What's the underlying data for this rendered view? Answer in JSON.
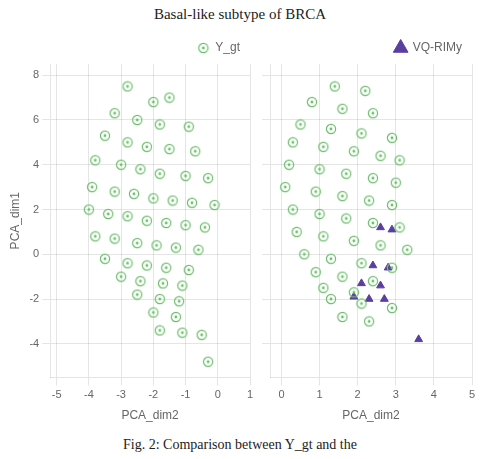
{
  "title": "Basal-like subtype of BRCA",
  "annotations": [
    "Fig. 2: Comparison between Y_gt and the"
  ],
  "chart_data": [
    {
      "type": "scatter",
      "xlabel": "PCA_dim2",
      "ylabel": "PCA_dim1",
      "xlim": [
        -5.2,
        1.0
      ],
      "ylim": [
        -5.5,
        8.5
      ],
      "xticks": [
        -5,
        -4,
        -3,
        -2,
        -1,
        0,
        1
      ],
      "yticks": [
        -4,
        -2,
        0,
        2,
        4,
        6,
        8
      ],
      "grid": true,
      "legend": "upper right",
      "series": [
        {
          "name": "Y_gt",
          "color": "#6abf69",
          "marker": "circle",
          "values": [
            [
              -2.8,
              7.5
            ],
            [
              -1.5,
              7.0
            ],
            [
              -2.0,
              6.8
            ],
            [
              -3.2,
              6.3
            ],
            [
              -2.5,
              6.0
            ],
            [
              -1.8,
              5.8
            ],
            [
              -0.9,
              5.7
            ],
            [
              -3.5,
              5.3
            ],
            [
              -2.8,
              5.0
            ],
            [
              -2.2,
              4.8
            ],
            [
              -1.5,
              4.7
            ],
            [
              -0.7,
              4.6
            ],
            [
              -3.8,
              4.2
            ],
            [
              -3.0,
              4.0
            ],
            [
              -2.4,
              3.8
            ],
            [
              -1.8,
              3.6
            ],
            [
              -1.0,
              3.5
            ],
            [
              -0.3,
              3.4
            ],
            [
              -3.9,
              3.0
            ],
            [
              -3.2,
              2.8
            ],
            [
              -2.6,
              2.7
            ],
            [
              -2.0,
              2.5
            ],
            [
              -1.4,
              2.4
            ],
            [
              -0.8,
              2.3
            ],
            [
              -0.1,
              2.2
            ],
            [
              -4.0,
              2.0
            ],
            [
              -3.4,
              1.8
            ],
            [
              -2.8,
              1.7
            ],
            [
              -2.2,
              1.5
            ],
            [
              -1.6,
              1.4
            ],
            [
              -1.0,
              1.3
            ],
            [
              -0.4,
              1.2
            ],
            [
              -3.8,
              0.8
            ],
            [
              -3.2,
              0.7
            ],
            [
              -2.5,
              0.5
            ],
            [
              -1.9,
              0.4
            ],
            [
              -1.3,
              0.3
            ],
            [
              -0.6,
              0.2
            ],
            [
              -3.5,
              -0.2
            ],
            [
              -2.8,
              -0.4
            ],
            [
              -2.2,
              -0.5
            ],
            [
              -1.6,
              -0.6
            ],
            [
              -0.9,
              -0.7
            ],
            [
              -3.0,
              -1.0
            ],
            [
              -2.4,
              -1.2
            ],
            [
              -1.7,
              -1.3
            ],
            [
              -1.1,
              -1.4
            ],
            [
              -2.5,
              -1.8
            ],
            [
              -1.8,
              -2.0
            ],
            [
              -1.2,
              -2.1
            ],
            [
              -2.0,
              -2.6
            ],
            [
              -1.3,
              -2.8
            ],
            [
              -1.8,
              -3.4
            ],
            [
              -1.1,
              -3.5
            ],
            [
              -0.5,
              -3.6
            ],
            [
              -0.3,
              -4.8
            ]
          ]
        }
      ]
    },
    {
      "type": "scatter",
      "xlabel": "PCA_dim2",
      "xlim": [
        -0.3,
        5.0
      ],
      "ylim": [
        -5.5,
        8.5
      ],
      "xticks": [
        0,
        1,
        2,
        3,
        4,
        5
      ],
      "yticks": [
        -4,
        -2,
        0,
        2,
        4,
        6,
        8
      ],
      "tick_labels": "x",
      "grid": true,
      "legend": "upper right",
      "series": [
        {
          "color": "#6abf69",
          "marker": "circle",
          "values": [
            [
              1.4,
              7.5
            ],
            [
              2.2,
              7.3
            ],
            [
              0.8,
              6.8
            ],
            [
              1.6,
              6.5
            ],
            [
              2.4,
              6.3
            ],
            [
              0.5,
              5.8
            ],
            [
              1.3,
              5.6
            ],
            [
              2.1,
              5.4
            ],
            [
              2.9,
              5.2
            ],
            [
              0.3,
              5.0
            ],
            [
              1.1,
              4.8
            ],
            [
              1.9,
              4.6
            ],
            [
              2.6,
              4.4
            ],
            [
              3.1,
              4.2
            ],
            [
              0.2,
              4.0
            ],
            [
              1.0,
              3.8
            ],
            [
              1.7,
              3.6
            ],
            [
              2.4,
              3.4
            ],
            [
              3.0,
              3.2
            ],
            [
              0.1,
              3.0
            ],
            [
              0.9,
              2.8
            ],
            [
              1.6,
              2.6
            ],
            [
              2.3,
              2.4
            ],
            [
              2.9,
              2.2
            ],
            [
              0.3,
              2.0
            ],
            [
              1.0,
              1.8
            ],
            [
              1.7,
              1.6
            ],
            [
              2.4,
              1.4
            ],
            [
              3.1,
              1.2
            ],
            [
              0.4,
              1.0
            ],
            [
              1.1,
              0.8
            ],
            [
              1.9,
              0.6
            ],
            [
              2.6,
              0.4
            ],
            [
              3.3,
              0.2
            ],
            [
              0.6,
              0.0
            ],
            [
              1.3,
              -0.2
            ],
            [
              2.1,
              -0.4
            ],
            [
              2.9,
              -0.6
            ],
            [
              0.9,
              -0.8
            ],
            [
              1.6,
              -1.0
            ],
            [
              2.4,
              -1.2
            ],
            [
              1.1,
              -1.5
            ],
            [
              1.9,
              -1.7
            ],
            [
              1.3,
              -2.0
            ],
            [
              2.1,
              -2.2
            ],
            [
              2.9,
              -2.4
            ],
            [
              1.6,
              -2.8
            ],
            [
              2.3,
              -3.0
            ]
          ]
        },
        {
          "name": "VQ-RIMy",
          "color": "#5b3fa0",
          "marker": "triangle",
          "values": [
            [
              2.6,
              1.2
            ],
            [
              2.9,
              1.1
            ],
            [
              2.4,
              -0.5
            ],
            [
              2.8,
              -0.6
            ],
            [
              2.1,
              -1.3
            ],
            [
              2.6,
              -1.4
            ],
            [
              1.9,
              -1.9
            ],
            [
              2.3,
              -2.0
            ],
            [
              2.7,
              -2.0
            ],
            [
              3.6,
              -3.8
            ]
          ]
        }
      ]
    }
  ]
}
